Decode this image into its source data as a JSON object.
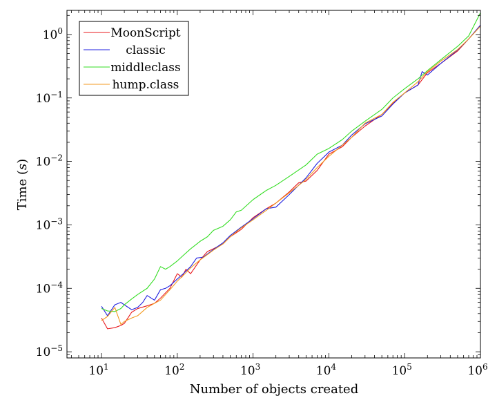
{
  "chart_data": {
    "type": "line",
    "xlabel": "Number of objects created",
    "ylabel": "Time (s)",
    "x_scale": "log",
    "y_scale": "log",
    "xlim": [
      3.5,
      1000000
    ],
    "ylim": [
      8e-06,
      2.4
    ],
    "x_ticks": [
      {
        "value": 10,
        "base": "10",
        "exp": "1"
      },
      {
        "value": 100,
        "base": "10",
        "exp": "2"
      },
      {
        "value": 1000,
        "base": "10",
        "exp": "3"
      },
      {
        "value": 10000,
        "base": "10",
        "exp": "4"
      },
      {
        "value": 100000,
        "base": "10",
        "exp": "5"
      },
      {
        "value": 1000000,
        "base": "10",
        "exp": "6"
      }
    ],
    "y_ticks": [
      {
        "value": 1e-05,
        "base": "10",
        "exp": "−5"
      },
      {
        "value": 0.0001,
        "base": "10",
        "exp": "−4"
      },
      {
        "value": 0.001,
        "base": "10",
        "exp": "−3"
      },
      {
        "value": 0.01,
        "base": "10",
        "exp": "−2"
      },
      {
        "value": 0.1,
        "base": "10",
        "exp": "−1"
      },
      {
        "value": 1,
        "base": "10",
        "exp": "0"
      }
    ],
    "grid": false,
    "legend_position": "top-left",
    "series": [
      {
        "name": "MoonScript",
        "color": "#e8191e",
        "points": [
          [
            10,
            3.4e-05
          ],
          [
            12,
            2.3e-05
          ],
          [
            15,
            2.4e-05
          ],
          [
            18,
            2.6e-05
          ],
          [
            20,
            2.8e-05
          ],
          [
            25,
            4.2e-05
          ],
          [
            30,
            4.8e-05
          ],
          [
            40,
            5.3e-05
          ],
          [
            50,
            5.8e-05
          ],
          [
            60,
            7e-05
          ],
          [
            80,
            0.0001
          ],
          [
            100,
            0.00017
          ],
          [
            115,
            0.00015
          ],
          [
            130,
            0.0002
          ],
          [
            150,
            0.00017
          ],
          [
            200,
            0.00028
          ],
          [
            250,
            0.00038
          ],
          [
            300,
            0.00042
          ],
          [
            400,
            0.0005
          ],
          [
            500,
            0.00065
          ],
          [
            700,
            0.00085
          ],
          [
            1000,
            0.0013
          ],
          [
            1500,
            0.0018
          ],
          [
            2000,
            0.0022
          ],
          [
            3000,
            0.0033
          ],
          [
            4000,
            0.0046
          ],
          [
            5000,
            0.0049
          ],
          [
            7000,
            0.0072
          ],
          [
            10000,
            0.013
          ],
          [
            15000,
            0.017
          ],
          [
            20000,
            0.024
          ],
          [
            30000,
            0.036
          ],
          [
            50000,
            0.055
          ],
          [
            70000,
            0.082
          ],
          [
            100000,
            0.12
          ],
          [
            150000,
            0.16
          ],
          [
            200000,
            0.25
          ],
          [
            300000,
            0.35
          ],
          [
            500000,
            0.55
          ],
          [
            700000,
            0.85
          ],
          [
            1000000,
            1.4
          ]
        ]
      },
      {
        "name": "classic",
        "color": "#2020e0",
        "points": [
          [
            10,
            5.2e-05
          ],
          [
            12,
            3.7e-05
          ],
          [
            15,
            5.5e-05
          ],
          [
            18,
            6e-05
          ],
          [
            20,
            5.5e-05
          ],
          [
            25,
            4.6e-05
          ],
          [
            30,
            5e-05
          ],
          [
            35,
            6e-05
          ],
          [
            40,
            7.7e-05
          ],
          [
            50,
            6.5e-05
          ],
          [
            60,
            9.5e-05
          ],
          [
            70,
            0.0001
          ],
          [
            80,
            0.00011
          ],
          [
            100,
            0.00014
          ],
          [
            120,
            0.00017
          ],
          [
            150,
            0.00022
          ],
          [
            180,
            0.0003
          ],
          [
            220,
            0.00031
          ],
          [
            300,
            0.00041
          ],
          [
            400,
            0.00052
          ],
          [
            500,
            0.00068
          ],
          [
            700,
            0.00092
          ],
          [
            1000,
            0.00125
          ],
          [
            1500,
            0.0018
          ],
          [
            2000,
            0.0019
          ],
          [
            3000,
            0.003
          ],
          [
            5000,
            0.0055
          ],
          [
            7000,
            0.0093
          ],
          [
            10000,
            0.014
          ],
          [
            15000,
            0.018
          ],
          [
            20000,
            0.026
          ],
          [
            30000,
            0.039
          ],
          [
            50000,
            0.052
          ],
          [
            70000,
            0.08
          ],
          [
            100000,
            0.12
          ],
          [
            150000,
            0.16
          ],
          [
            170000,
            0.26
          ],
          [
            200000,
            0.23
          ],
          [
            300000,
            0.35
          ],
          [
            500000,
            0.57
          ],
          [
            700000,
            0.85
          ],
          [
            1000000,
            1.4
          ]
        ]
      },
      {
        "name": "middleclass",
        "color": "#33dd22",
        "points": [
          [
            10,
            4.8e-05
          ],
          [
            12,
            4.4e-05
          ],
          [
            15,
            4.3e-05
          ],
          [
            18,
            4.8e-05
          ],
          [
            20,
            5.5e-05
          ],
          [
            25,
            6.8e-05
          ],
          [
            30,
            8e-05
          ],
          [
            40,
            0.0001
          ],
          [
            50,
            0.00014
          ],
          [
            60,
            0.00022
          ],
          [
            70,
            0.0002
          ],
          [
            80,
            0.00022
          ],
          [
            100,
            0.00027
          ],
          [
            120,
            0.00033
          ],
          [
            150,
            0.00042
          ],
          [
            200,
            0.00055
          ],
          [
            250,
            0.00065
          ],
          [
            300,
            0.00082
          ],
          [
            400,
            0.00095
          ],
          [
            500,
            0.0012
          ],
          [
            600,
            0.0016
          ],
          [
            700,
            0.0017
          ],
          [
            1000,
            0.0025
          ],
          [
            1500,
            0.0035
          ],
          [
            2000,
            0.0042
          ],
          [
            3000,
            0.0058
          ],
          [
            5000,
            0.0088
          ],
          [
            7000,
            0.013
          ],
          [
            10000,
            0.016
          ],
          [
            15000,
            0.022
          ],
          [
            20000,
            0.03
          ],
          [
            30000,
            0.043
          ],
          [
            50000,
            0.066
          ],
          [
            70000,
            0.1
          ],
          [
            100000,
            0.14
          ],
          [
            150000,
            0.2
          ],
          [
            200000,
            0.27
          ],
          [
            300000,
            0.4
          ],
          [
            500000,
            0.65
          ],
          [
            700000,
            0.95
          ],
          [
            1000000,
            2.2
          ]
        ]
      },
      {
        "name": "hump.class",
        "color": "#f39a1f",
        "points": [
          [
            10,
            3.1e-05
          ],
          [
            12,
            3.6e-05
          ],
          [
            15,
            5e-05
          ],
          [
            18,
            2.7e-05
          ],
          [
            20,
            3e-05
          ],
          [
            25,
            3.4e-05
          ],
          [
            30,
            3.7e-05
          ],
          [
            40,
            5e-05
          ],
          [
            50,
            5.8e-05
          ],
          [
            60,
            6.5e-05
          ],
          [
            80,
            9.5e-05
          ],
          [
            100,
            0.00013
          ],
          [
            120,
            0.00016
          ],
          [
            150,
            0.00021
          ],
          [
            200,
            0.00028
          ],
          [
            250,
            0.00034
          ],
          [
            300,
            0.0004
          ],
          [
            400,
            0.0005
          ],
          [
            500,
            0.00065
          ],
          [
            700,
            0.0009
          ],
          [
            1000,
            0.0012
          ],
          [
            1500,
            0.0017
          ],
          [
            2000,
            0.0022
          ],
          [
            3000,
            0.0032
          ],
          [
            5000,
            0.0052
          ],
          [
            7000,
            0.008
          ],
          [
            10000,
            0.012
          ],
          [
            15000,
            0.018
          ],
          [
            20000,
            0.024
          ],
          [
            30000,
            0.04
          ],
          [
            50000,
            0.055
          ],
          [
            70000,
            0.085
          ],
          [
            100000,
            0.12
          ],
          [
            150000,
            0.18
          ],
          [
            200000,
            0.26
          ],
          [
            300000,
            0.38
          ],
          [
            500000,
            0.58
          ],
          [
            700000,
            0.85
          ],
          [
            1000000,
            1.35
          ]
        ]
      }
    ]
  }
}
